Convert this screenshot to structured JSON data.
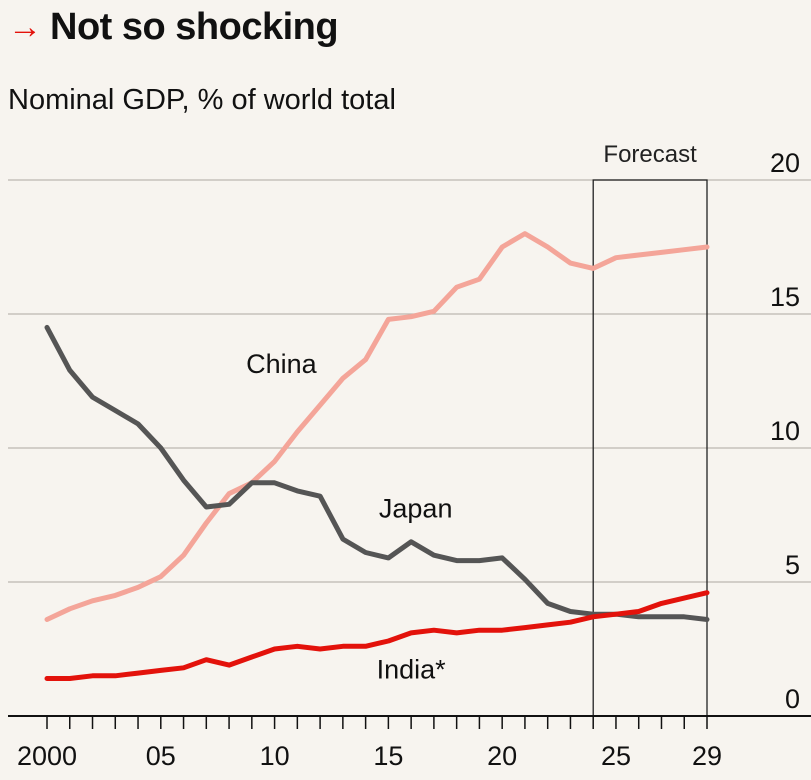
{
  "header": {
    "arrow": "→",
    "title": "Not so shocking",
    "subtitle": "Nominal GDP, % of world total"
  },
  "chart_data": {
    "type": "line",
    "title": "Not so shocking",
    "subtitle": "Nominal GDP, % of world total",
    "xlabel": "",
    "ylabel": "",
    "xlim": [
      2000,
      2029
    ],
    "ylim": [
      0,
      20
    ],
    "grid": true,
    "y_axis_side": "right",
    "x_ticks": [
      2000,
      2001,
      2002,
      2003,
      2004,
      2005,
      2006,
      2007,
      2008,
      2009,
      2010,
      2011,
      2012,
      2013,
      2014,
      2015,
      2016,
      2017,
      2018,
      2019,
      2020,
      2021,
      2022,
      2023,
      2024,
      2025,
      2026,
      2027,
      2028,
      2029
    ],
    "x_tick_labels": [
      {
        "x": 2000,
        "label": "2000"
      },
      {
        "x": 2005,
        "label": "05"
      },
      {
        "x": 2010,
        "label": "10"
      },
      {
        "x": 2015,
        "label": "15"
      },
      {
        "x": 2020,
        "label": "20"
      },
      {
        "x": 2025,
        "label": "25"
      },
      {
        "x": 2029,
        "label": "29"
      }
    ],
    "y_ticks": [
      0,
      5,
      10,
      15,
      20
    ],
    "y_tick_labels": [
      "0",
      "5",
      "10",
      "15",
      "20"
    ],
    "forecast": {
      "label": "Forecast",
      "from": 2024,
      "to": 2029
    },
    "x": [
      2000,
      2001,
      2002,
      2003,
      2004,
      2005,
      2006,
      2007,
      2008,
      2009,
      2010,
      2011,
      2012,
      2013,
      2014,
      2015,
      2016,
      2017,
      2018,
      2019,
      2020,
      2021,
      2022,
      2023,
      2024,
      2025,
      2026,
      2027,
      2028,
      2029
    ],
    "series": [
      {
        "name": "China",
        "color": "#f4a599",
        "values": [
          3.6,
          4.0,
          4.3,
          4.5,
          4.8,
          5.2,
          6.0,
          7.2,
          8.3,
          8.7,
          9.5,
          10.6,
          11.6,
          12.6,
          13.3,
          14.8,
          14.9,
          15.1,
          16.0,
          16.3,
          17.5,
          18.0,
          17.5,
          16.9,
          16.7,
          17.1,
          17.2,
          17.3,
          17.4,
          17.5
        ],
        "label_position": {
          "x": 2010.3,
          "y": 12.8
        }
      },
      {
        "name": "Japan",
        "color": "#555555",
        "values": [
          14.5,
          12.9,
          11.9,
          11.4,
          10.9,
          10.0,
          8.8,
          7.8,
          7.9,
          8.7,
          8.7,
          8.4,
          8.2,
          6.6,
          6.1,
          5.9,
          6.5,
          6.0,
          5.8,
          5.8,
          5.9,
          5.1,
          4.2,
          3.9,
          3.8,
          3.8,
          3.7,
          3.7,
          3.7,
          3.6
        ],
        "label_position": {
          "x": 2016.2,
          "y": 7.4
        }
      },
      {
        "name": "India*",
        "color": "#e3120b",
        "values": [
          1.4,
          1.4,
          1.5,
          1.5,
          1.6,
          1.7,
          1.8,
          2.1,
          1.9,
          2.2,
          2.5,
          2.6,
          2.5,
          2.6,
          2.6,
          2.8,
          3.1,
          3.2,
          3.1,
          3.2,
          3.2,
          3.3,
          3.4,
          3.5,
          3.7,
          3.8,
          3.9,
          4.2,
          4.4,
          4.6
        ],
        "label_position": {
          "x": 2016.0,
          "y": 1.4
        }
      }
    ]
  }
}
